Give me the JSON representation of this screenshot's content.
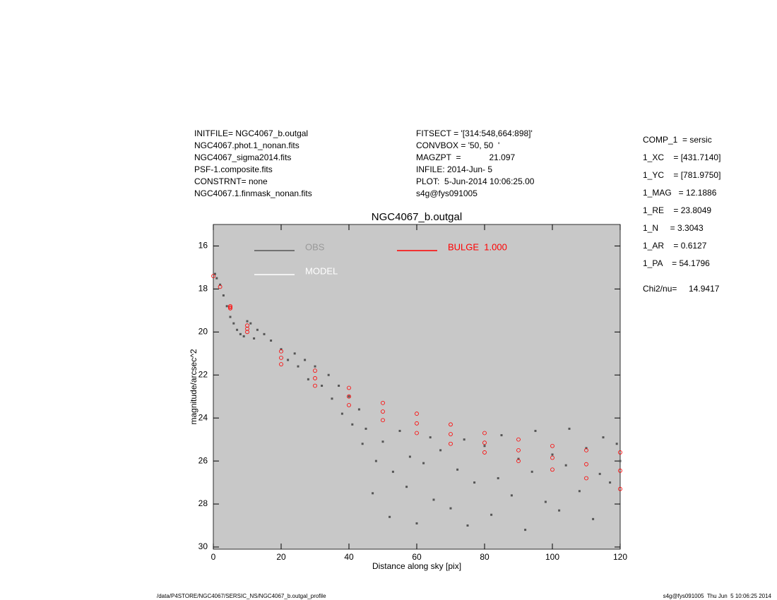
{
  "header": {
    "left": [
      "INITFILE= NGC4067_b.outgal",
      "NGC4067.phot.1_nonan.fits",
      "NGC4067_sigma2014.fits",
      "PSF-1.composite.fits",
      "CONSTRNT= none",
      "NGC4067.1.finmask_nonan.fits"
    ],
    "center": [
      "FITSECT = '[314:548,664:898]'",
      "CONVBOX = '50, 50  '",
      "MAGZPT  =            21.097",
      "INFILE: 2014-Jun- 5",
      "PLOT:  5-Jun-2014 10:06:25.00",
      "s4g@fys091005"
    ],
    "right": [
      "COMP_1  = sersic",
      "1_XC    = [431.7140]",
      "1_YC    = [781.9750]",
      "1_MAG   = 12.1886",
      "1_RE    = 23.8049",
      "1_N     = 3.3043",
      "1_AR    = 0.6127",
      "1_PA    = 54.1796"
    ],
    "chi": "Chi2/nu=     14.9417"
  },
  "footer": {
    "left": "/data/P4STORE/NGC4067/SERSIC_NS/NGC4067_b.outgal_profile",
    "right": "s4g@fys091005  Thu Jun  5 10:06:25 2014"
  },
  "chart_data": {
    "type": "scatter",
    "title": "NGC4067_b.outgal",
    "x_label": "Distance along sky [pix]",
    "y_label": "magnitude/arcsec^2",
    "xlim": [
      0,
      120
    ],
    "xticks": [
      0,
      20,
      40,
      60,
      80,
      100,
      120
    ],
    "ylim": [
      30.1,
      15
    ],
    "yticks": [
      16,
      18,
      20,
      22,
      24,
      26,
      28,
      30
    ],
    "background": "#c8c8c8",
    "series": [
      {
        "name": "OBS",
        "color": "#555555",
        "x": [
          0.5,
          1,
          2,
          3,
          4,
          5,
          6,
          7,
          8,
          9,
          10,
          11,
          12,
          13,
          15,
          17,
          20,
          22,
          24,
          25,
          27,
          28,
          30,
          32,
          34,
          35,
          37,
          38,
          40,
          41,
          43,
          44,
          45,
          47,
          48,
          50,
          52,
          53,
          55,
          57,
          58,
          60,
          62,
          64,
          65,
          67,
          70,
          72,
          74,
          75,
          77,
          80,
          82,
          84,
          85,
          88,
          90,
          92,
          94,
          95,
          98,
          100,
          102,
          104,
          105,
          108,
          110,
          112,
          114,
          115,
          117,
          119,
          120
        ],
        "values": [
          17.3,
          17.5,
          17.8,
          18.3,
          18.8,
          19.3,
          19.6,
          19.9,
          20.1,
          20.2,
          19.5,
          19.6,
          20.3,
          19.9,
          20.1,
          20.4,
          20.8,
          21.3,
          21.0,
          21.6,
          21.3,
          22.2,
          21.6,
          22.5,
          22.0,
          23.1,
          22.5,
          23.8,
          23.0,
          24.3,
          23.6,
          25.2,
          24.5,
          27.5,
          26.0,
          25.1,
          28.6,
          26.5,
          24.6,
          27.2,
          25.8,
          28.9,
          26.1,
          24.9,
          27.8,
          25.5,
          28.2,
          26.4,
          25.0,
          29.0,
          27.0,
          25.3,
          28.5,
          26.8,
          24.8,
          27.6,
          25.9,
          29.2,
          26.5,
          24.6,
          27.9,
          25.7,
          28.3,
          26.2,
          24.5,
          27.4,
          25.4,
          28.7,
          26.6,
          24.9,
          27.0,
          25.2,
          26.0
        ]
      },
      {
        "name": "MODEL",
        "color": "#ffffff",
        "x": [],
        "values": []
      },
      {
        "name": "BULGE  1.000",
        "color": "#ff0000",
        "x": [
          0,
          5,
          10,
          20,
          30,
          40,
          50,
          60,
          70,
          80,
          90,
          100,
          110,
          120,
          2,
          5,
          10,
          20,
          30,
          40,
          50,
          60,
          70,
          80,
          90,
          100,
          110,
          120,
          5,
          10,
          20,
          30,
          40,
          50,
          60,
          70,
          80,
          90,
          100,
          110,
          120
        ],
        "values": [
          17.4,
          18.8,
          19.7,
          20.9,
          21.8,
          22.6,
          23.3,
          23.8,
          24.3,
          24.7,
          25.0,
          25.3,
          25.5,
          25.6,
          17.9,
          18.9,
          20.0,
          21.5,
          22.5,
          23.4,
          24.1,
          24.7,
          25.2,
          25.6,
          26.0,
          26.4,
          26.8,
          27.3,
          18.85,
          19.85,
          21.2,
          22.15,
          23.0,
          23.7,
          24.25,
          24.75,
          25.15,
          25.5,
          25.85,
          26.15,
          26.45
        ]
      }
    ]
  }
}
